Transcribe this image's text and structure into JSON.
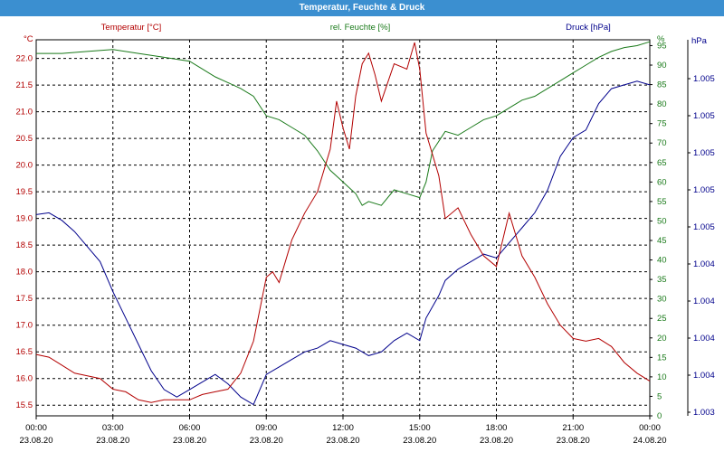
{
  "window": {
    "title": "Temperatur, Feuchte & Druck"
  },
  "colors": {
    "titlebar": "#3b8fd0",
    "temperature": "#b30000",
    "humidity": "#1a7a1a",
    "pressure": "#00008b",
    "grid": "#000000"
  },
  "chart_data": {
    "type": "line",
    "grid": true,
    "legend": "top",
    "axes": {
      "left": {
        "unit": "°C",
        "range": [
          15.3,
          22.35
        ],
        "ticks": [
          "15.5",
          "16.0",
          "16.5",
          "17.0",
          "17.5",
          "18.0",
          "18.5",
          "19.0",
          "19.5",
          "20.0",
          "20.5",
          "21.0",
          "21.5",
          "22.0"
        ]
      },
      "right1": {
        "unit": "%",
        "range": [
          0,
          96.5
        ],
        "ticks": [
          "0",
          "5",
          "10",
          "15",
          "20",
          "25",
          "30",
          "35",
          "40",
          "45",
          "50",
          "55",
          "60",
          "65",
          "70",
          "75",
          "80",
          "85",
          "90",
          "95"
        ]
      },
      "right2": {
        "unit": "hPa",
        "tick_labels": [
          "1.003",
          "1.004",
          "1.004",
          "1.004",
          "1.004",
          "1.005",
          "1.005",
          "1.005",
          "1.005",
          "1.005"
        ]
      }
    },
    "x_ticks": [
      {
        "time": "00:00",
        "date": "23.08.20"
      },
      {
        "time": "03:00",
        "date": "23.08.20"
      },
      {
        "time": "06:00",
        "date": "23.08.20"
      },
      {
        "time": "09:00",
        "date": "23.08.20"
      },
      {
        "time": "12:00",
        "date": "23.08.20"
      },
      {
        "time": "15:00",
        "date": "23.08.20"
      },
      {
        "time": "18:00",
        "date": "23.08.20"
      },
      {
        "time": "21:00",
        "date": "23.08.20"
      },
      {
        "time": "00:00",
        "date": "24.08.20"
      }
    ],
    "series": [
      {
        "name": "Temperatur [°C]",
        "axis": "left",
        "color": "#b30000",
        "points": [
          [
            0,
            16.45
          ],
          [
            0.5,
            16.4
          ],
          [
            1,
            16.25
          ],
          [
            1.5,
            16.1
          ],
          [
            2,
            16.05
          ],
          [
            2.5,
            16.0
          ],
          [
            3,
            15.8
          ],
          [
            3.5,
            15.75
          ],
          [
            4,
            15.6
          ],
          [
            4.5,
            15.55
          ],
          [
            5,
            15.6
          ],
          [
            5.5,
            15.6
          ],
          [
            6,
            15.6
          ],
          [
            6.5,
            15.7
          ],
          [
            7,
            15.75
          ],
          [
            7.5,
            15.8
          ],
          [
            8,
            16.1
          ],
          [
            8.5,
            16.7
          ],
          [
            9,
            17.9
          ],
          [
            9.25,
            18.0
          ],
          [
            9.5,
            17.8
          ],
          [
            10,
            18.6
          ],
          [
            10.5,
            19.1
          ],
          [
            11,
            19.5
          ],
          [
            11.5,
            20.3
          ],
          [
            11.75,
            21.2
          ],
          [
            12,
            20.7
          ],
          [
            12.25,
            20.3
          ],
          [
            12.5,
            21.3
          ],
          [
            12.75,
            21.9
          ],
          [
            13,
            22.1
          ],
          [
            13.25,
            21.7
          ],
          [
            13.5,
            21.2
          ],
          [
            14,
            21.9
          ],
          [
            14.5,
            21.8
          ],
          [
            14.8,
            22.3
          ],
          [
            15,
            21.8
          ],
          [
            15.25,
            20.6
          ],
          [
            15.5,
            20.2
          ],
          [
            15.75,
            19.8
          ],
          [
            16,
            19.0
          ],
          [
            16.5,
            19.2
          ],
          [
            17,
            18.7
          ],
          [
            17.5,
            18.3
          ],
          [
            18,
            18.1
          ],
          [
            18.5,
            19.1
          ],
          [
            19,
            18.3
          ],
          [
            19.5,
            17.9
          ],
          [
            20,
            17.4
          ],
          [
            20.5,
            17.0
          ],
          [
            21,
            16.75
          ],
          [
            21.5,
            16.7
          ],
          [
            22,
            16.75
          ],
          [
            22.5,
            16.6
          ],
          [
            23,
            16.3
          ],
          [
            23.5,
            16.1
          ],
          [
            24,
            15.95
          ]
        ]
      },
      {
        "name": "rel. Feuchte [%]",
        "axis": "right1",
        "color": "#1a7a1a",
        "points": [
          [
            0,
            93
          ],
          [
            1,
            93
          ],
          [
            2,
            93.5
          ],
          [
            3,
            94
          ],
          [
            4,
            93
          ],
          [
            5,
            92
          ],
          [
            6,
            91
          ],
          [
            6.5,
            89
          ],
          [
            7,
            87
          ],
          [
            7.5,
            85.5
          ],
          [
            8,
            84
          ],
          [
            8.5,
            82
          ],
          [
            9,
            77
          ],
          [
            9.5,
            76
          ],
          [
            10,
            74
          ],
          [
            10.5,
            72
          ],
          [
            11,
            68
          ],
          [
            11.5,
            63
          ],
          [
            12,
            60
          ],
          [
            12.5,
            57
          ],
          [
            12.75,
            54
          ],
          [
            13,
            55
          ],
          [
            13.5,
            54
          ],
          [
            14,
            58
          ],
          [
            14.5,
            57
          ],
          [
            15,
            56
          ],
          [
            15.25,
            60
          ],
          [
            15.5,
            68
          ],
          [
            16,
            73
          ],
          [
            16.5,
            72
          ],
          [
            17,
            74
          ],
          [
            17.5,
            76
          ],
          [
            18,
            77
          ],
          [
            18.5,
            79
          ],
          [
            19,
            81
          ],
          [
            19.5,
            82
          ],
          [
            20,
            84
          ],
          [
            20.5,
            86
          ],
          [
            21,
            88
          ],
          [
            21.5,
            90
          ],
          [
            22,
            92
          ],
          [
            22.5,
            93.5
          ],
          [
            23,
            94.5
          ],
          [
            23.5,
            95
          ],
          [
            24,
            96
          ]
        ]
      },
      {
        "name": "Druck [hPa]",
        "axis": "right2",
        "color": "#00008b",
        "relative_level_0_to_1": [
          [
            0,
            0.535
          ],
          [
            0.5,
            0.54
          ],
          [
            1,
            0.52
          ],
          [
            1.5,
            0.49
          ],
          [
            2,
            0.45
          ],
          [
            2.5,
            0.41
          ],
          [
            3,
            0.33
          ],
          [
            3.5,
            0.26
          ],
          [
            4,
            0.19
          ],
          [
            4.5,
            0.12
          ],
          [
            5,
            0.07
          ],
          [
            5.5,
            0.05
          ],
          [
            6,
            0.07
          ],
          [
            6.5,
            0.09
          ],
          [
            7,
            0.11
          ],
          [
            7.5,
            0.085
          ],
          [
            8,
            0.05
          ],
          [
            8.5,
            0.03
          ],
          [
            9,
            0.11
          ],
          [
            9.5,
            0.13
          ],
          [
            10,
            0.15
          ],
          [
            10.5,
            0.17
          ],
          [
            11,
            0.18
          ],
          [
            11.5,
            0.2
          ],
          [
            12,
            0.19
          ],
          [
            12.5,
            0.18
          ],
          [
            13,
            0.16
          ],
          [
            13.5,
            0.17
          ],
          [
            14,
            0.2
          ],
          [
            14.5,
            0.22
          ],
          [
            15,
            0.2
          ],
          [
            15.25,
            0.26
          ],
          [
            15.75,
            0.32
          ],
          [
            16,
            0.36
          ],
          [
            16.5,
            0.39
          ],
          [
            17,
            0.41
          ],
          [
            17.5,
            0.43
          ],
          [
            18,
            0.42
          ],
          [
            18.5,
            0.46
          ],
          [
            19,
            0.5
          ],
          [
            19.5,
            0.54
          ],
          [
            20,
            0.6
          ],
          [
            20.5,
            0.69
          ],
          [
            21,
            0.74
          ],
          [
            21.5,
            0.76
          ],
          [
            22,
            0.83
          ],
          [
            22.5,
            0.87
          ],
          [
            23,
            0.88
          ],
          [
            23.5,
            0.89
          ],
          [
            24,
            0.88
          ]
        ]
      }
    ]
  }
}
